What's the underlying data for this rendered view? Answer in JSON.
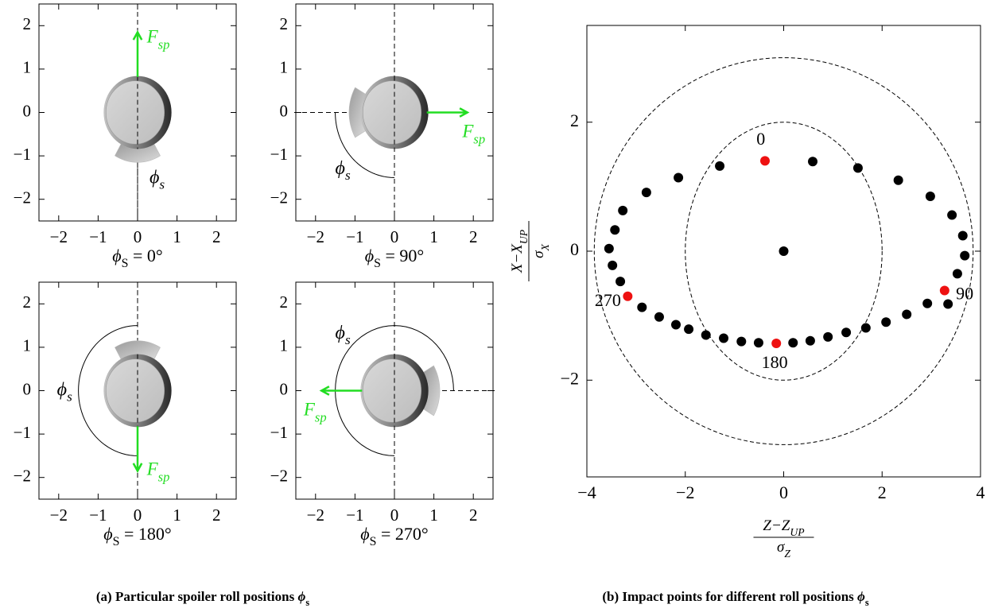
{
  "captions": [
    [
      "(a) Particular spoiler roll positions ",
      "ϕ",
      "s"
    ],
    [
      "(b) Impact points for different roll positions ",
      "ϕ",
      "s"
    ]
  ],
  "chart_data": [
    {
      "type": "spoiler",
      "roll_angle": 0,
      "xlabel": [
        "ϕ",
        "S",
        " = 0°"
      ],
      "force_label": [
        "F",
        "sp"
      ],
      "angle_label": [
        "ϕ",
        "s"
      ],
      "force_color": "#22dd22",
      "xlim": [
        -2.5,
        2.5
      ],
      "ylim": [
        -2.5,
        2.5
      ],
      "xticks": [
        {
          "value": -2,
          "label": "−2"
        },
        {
          "value": -1,
          "label": "−1"
        },
        0,
        1,
        2
      ],
      "yticks": [
        {
          "value": -2,
          "label": "−2"
        },
        {
          "value": -1,
          "label": "−1"
        },
        0,
        1,
        2
      ]
    },
    {
      "type": "spoiler",
      "roll_angle": 90,
      "xlabel": [
        "ϕ",
        "S",
        " = 90°"
      ],
      "force_label": [
        "F",
        "sp"
      ],
      "angle_label": [
        "ϕ",
        "s"
      ],
      "force_color": "#22dd22",
      "xlim": [
        -2.5,
        2.5
      ],
      "ylim": [
        -2.5,
        2.5
      ],
      "xticks": [
        {
          "value": -2,
          "label": "−2"
        },
        {
          "value": -1,
          "label": "−1"
        },
        0,
        1,
        2
      ],
      "yticks": [
        {
          "value": -2,
          "label": "−2"
        },
        {
          "value": -1,
          "label": "−1"
        },
        0,
        1,
        2
      ]
    },
    {
      "type": "spoiler",
      "roll_angle": 180,
      "xlabel": [
        "ϕ",
        "S",
        " = 180°"
      ],
      "force_label": [
        "F",
        "sp"
      ],
      "angle_label": [
        "ϕ",
        "s"
      ],
      "force_color": "#22dd22",
      "xlim": [
        -2.5,
        2.5
      ],
      "ylim": [
        -2.5,
        2.5
      ],
      "xticks": [
        {
          "value": -2,
          "label": "−2"
        },
        {
          "value": -1,
          "label": "−1"
        },
        0,
        1,
        2
      ],
      "yticks": [
        {
          "value": -2,
          "label": "−2"
        },
        {
          "value": -1,
          "label": "−1"
        },
        0,
        1,
        2
      ]
    },
    {
      "type": "spoiler",
      "roll_angle": 270,
      "xlabel": [
        "ϕ",
        "S",
        " = 270°"
      ],
      "force_label": [
        "F",
        "sp"
      ],
      "angle_label": [
        "ϕ",
        "s"
      ],
      "force_color": "#22dd22",
      "xlim": [
        -2.5,
        2.5
      ],
      "ylim": [
        -2.5,
        2.5
      ],
      "xticks": [
        {
          "value": -2,
          "label": "−2"
        },
        {
          "value": -1,
          "label": "−1"
        },
        0,
        1,
        2
      ],
      "yticks": [
        {
          "value": -2,
          "label": "−2"
        },
        {
          "value": -1,
          "label": "−1"
        },
        0,
        1,
        2
      ]
    },
    {
      "type": "scatter",
      "xlabel": {
        "numerator": [
          "Z−Z",
          "UP"
        ],
        "denominator": [
          "σ",
          "Z"
        ]
      },
      "ylabel": {
        "numerator": [
          "X−X",
          "UP"
        ],
        "denominator": [
          "σ",
          "X"
        ]
      },
      "xlim": [
        -4,
        4
      ],
      "ylim": [
        -3.5,
        3.5
      ],
      "xticks": [
        {
          "value": -4,
          "label": "−4"
        },
        {
          "value": -2,
          "label": "−2"
        },
        0,
        2,
        4
      ],
      "yticks": [
        {
          "value": -2,
          "label": "−2"
        },
        0,
        2
      ],
      "ellipses": [
        {
          "rx": 2,
          "ry": 2
        },
        {
          "rx": 3.85,
          "ry": 3
        }
      ],
      "series": [
        {
          "color": "#000000",
          "x": [
            0,
            0.59,
            1.51,
            2.33,
            2.98,
            3.42,
            3.64,
            3.68,
            3.53,
            3.34,
            2.92,
            2.5,
            2.08,
            1.67,
            1.27,
            0.9,
            0.54,
            0.19,
            -0.51,
            -0.86,
            -1.22,
            -1.58,
            -1.93,
            -2.19,
            -2.53,
            -2.88,
            -3.32,
            -3.48,
            -3.55,
            -3.43,
            -3.27,
            -2.79,
            -2.14,
            -1.3
          ],
          "values": [
            0,
            1.39,
            1.29,
            1.1,
            0.85,
            0.56,
            0.24,
            -0.07,
            -0.35,
            -0.82,
            -0.81,
            -0.98,
            -1.1,
            -1.19,
            -1.26,
            -1.33,
            -1.39,
            -1.42,
            -1.42,
            -1.4,
            -1.35,
            -1.3,
            -1.21,
            -1.14,
            -1.02,
            -0.87,
            -0.47,
            -0.22,
            0.04,
            0.33,
            0.63,
            0.91,
            1.14,
            1.32
          ]
        },
        {
          "color": "#ee1111",
          "x": [
            -0.38,
            3.27,
            -0.15,
            -3.17
          ],
          "values": [
            1.4,
            -0.61,
            -1.43,
            -0.7
          ],
          "point_labels": [
            "0",
            "90",
            "180",
            "270"
          ]
        }
      ]
    }
  ]
}
